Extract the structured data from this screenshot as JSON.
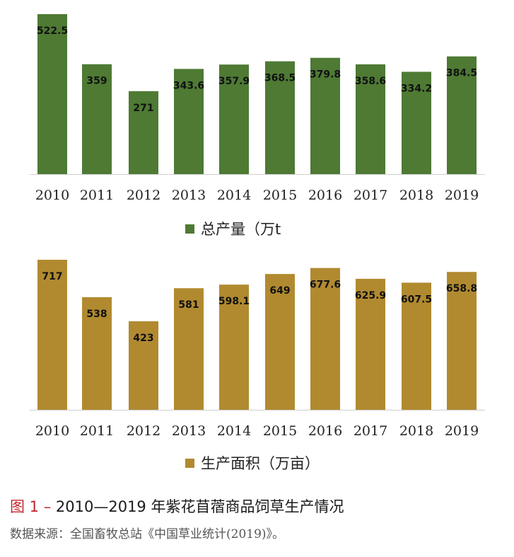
{
  "chart_data": [
    {
      "type": "bar",
      "categories": [
        "2010",
        "2011",
        "2012",
        "2013",
        "2014",
        "2015",
        "2016",
        "2017",
        "2018",
        "2019"
      ],
      "values": [
        522.5,
        359,
        271,
        343.6,
        357.9,
        368.5,
        379.8,
        358.6,
        334.2,
        384.5
      ],
      "value_labels": [
        "522.5",
        "359",
        "271",
        "343.6",
        "357.9",
        "368.5",
        "379.8",
        "358.6",
        "334.2",
        "384.5"
      ],
      "series": [
        {
          "name": "总产量（万t",
          "color": "#4e7a34"
        }
      ],
      "legend_position": "bottom",
      "grid": false
    },
    {
      "type": "bar",
      "categories": [
        "2010",
        "2011",
        "2012",
        "2013",
        "2014",
        "2015",
        "2016",
        "2017",
        "2018",
        "2019"
      ],
      "values": [
        717,
        538,
        423,
        581,
        598.1,
        649,
        677.6,
        625.9,
        607.5,
        658.8
      ],
      "value_labels": [
        "717",
        "538",
        "423",
        "581",
        "598.1",
        "649",
        "677.6",
        "625.9",
        "607.5",
        "658.8"
      ],
      "series": [
        {
          "name": "生产面积（万亩）",
          "color": "#b18a30"
        }
      ],
      "legend_position": "bottom",
      "grid": false
    }
  ],
  "caption": {
    "figure_label": "图 1 –",
    "title": "2010—2019 年紫花苜蓿商品饲草生产情况"
  },
  "source": "数据来源：全国畜牧总站《中国草业统计(2019)》。"
}
